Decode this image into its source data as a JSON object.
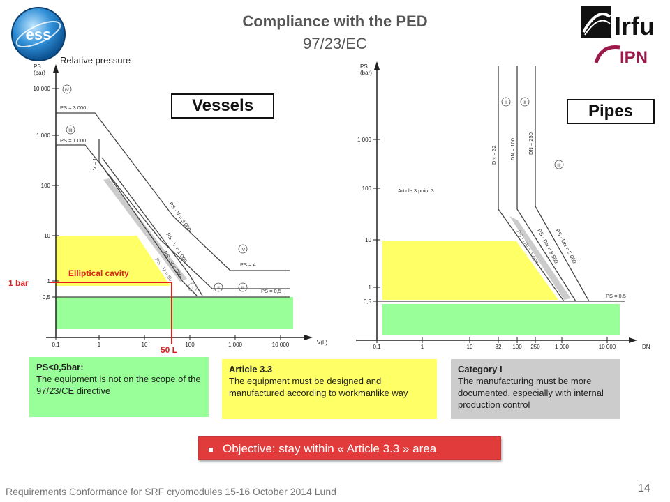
{
  "header": {
    "title": "Compliance with the PED",
    "subtitle": "97/23/EC"
  },
  "logos": {
    "left": "ess",
    "right_top": "Irfu",
    "right_bottom": "IPN"
  },
  "vessels": {
    "badge": "Vessels",
    "y_label_1": "PS",
    "y_label_2": "(bar)",
    "relative_pressure": "Relative pressure",
    "y_ticks": [
      "10 000",
      "1 000",
      "100",
      "10",
      "1",
      "0,5"
    ],
    "x_ticks": [
      "0,1",
      "1",
      "10",
      "100",
      "1 000",
      "10 000"
    ],
    "x_axis_label": "V(L)",
    "line_labels": [
      "PS = 3 000",
      "PS = 1 000",
      "V = 1",
      "PS · V = 3 000",
      "PS · V = 1 000",
      "PS · V = 200",
      "PS · V = 50",
      "PS = 4",
      "PS = 0,5"
    ],
    "roman": [
      "IV",
      "III",
      "IV",
      "III",
      "II",
      "I"
    ],
    "elliptical_cavity": "Elliptical cavity",
    "one_bar": "1 bar",
    "fifty_l": "50 L",
    "colors": {
      "yellow": "#ffff66",
      "green": "#99ff99",
      "red": "#e0201a",
      "label_red": "#d22"
    }
  },
  "pipes": {
    "badge": "Pipes",
    "y_label_1": "PS",
    "y_label_2": "(bar)",
    "y_ticks": [
      "1 000",
      "100",
      "10",
      "1",
      "0,5"
    ],
    "x_ticks": [
      "0,1",
      "1",
      "10",
      "32",
      "100",
      "250",
      "1 000",
      "10 000"
    ],
    "x_axis_label": "DN",
    "article_note": "Article 3 point 3",
    "line_labels": [
      "DN = 32",
      "DN = 100",
      "DN = 250",
      "PS · DN = 1 000",
      "PS · DN = 3 500",
      "PS · DN = 5 000",
      "PS = 0,5"
    ],
    "roman": [
      "I",
      "II",
      "III"
    ]
  },
  "info_boxes": {
    "green": {
      "head": "PS<0,5bar:",
      "body": "The equipment is not on the scope of the 97/23/CE directive"
    },
    "yellow": {
      "head": "Article 3.3",
      "body": "The equipment must be designed and manufactured according  to workmanlike way"
    },
    "gray": {
      "head": "Category I",
      "body": "The manufacturing must be more documented, especially with internal production control"
    }
  },
  "objective": "Objective: stay within « Article 3.3 » area",
  "footer": {
    "text": "Requirements Conformance for SRF cryomodules 15-16 October 2014    Lund",
    "page": "14"
  }
}
